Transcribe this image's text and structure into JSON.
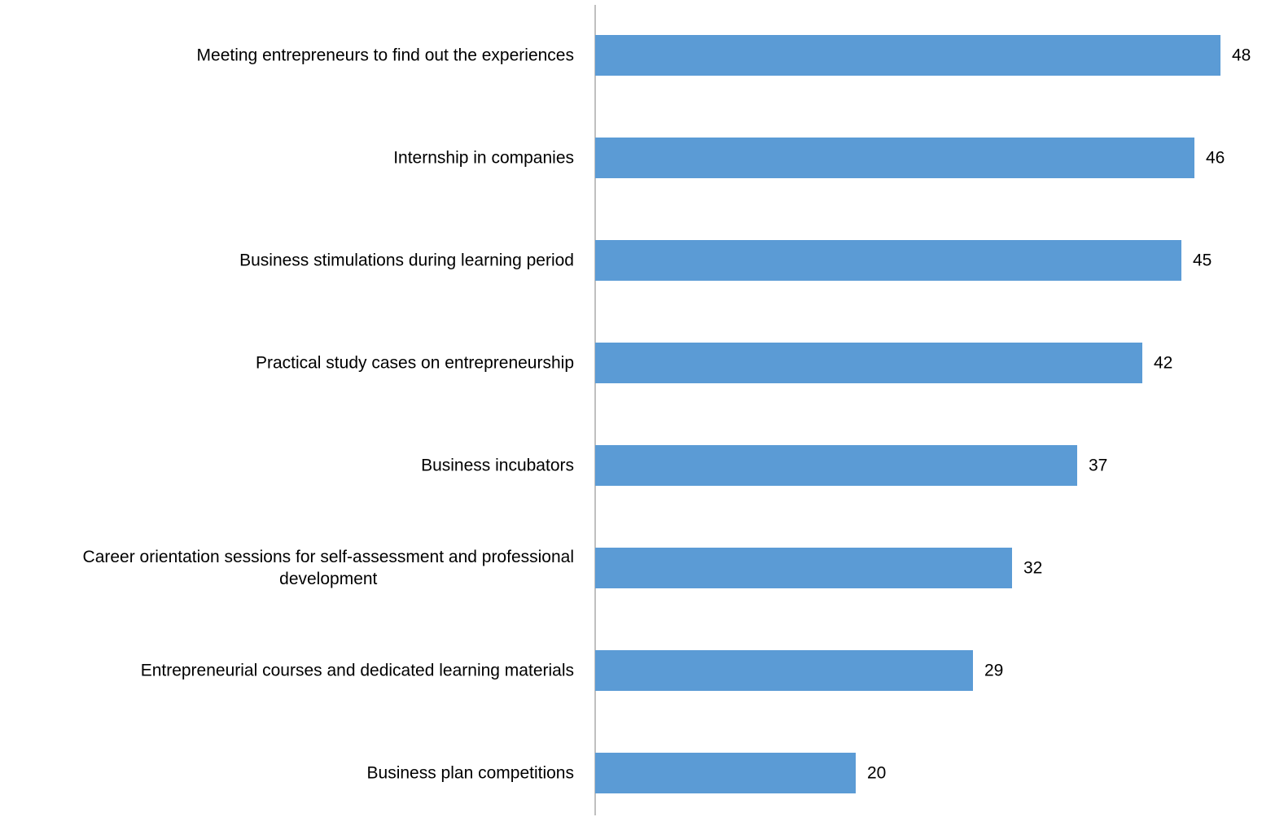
{
  "chart_data": {
    "type": "bar",
    "orientation": "horizontal",
    "categories": [
      "Meeting entrepreneurs to find out the experiences",
      "Internship in companies",
      "Business stimulations during learning period",
      "Practical study cases on entrepreneurship",
      "Business incubators",
      "Career orientation sessions for self-assessment and professional development",
      "Entrepreneurial courses and dedicated learning materials",
      "Business plan competitions"
    ],
    "category_lines": [
      [
        "Meeting entrepreneurs to find out the experiences"
      ],
      [
        "Internship in companies"
      ],
      [
        "Business stimulations during learning period"
      ],
      [
        "Practical study cases on entrepreneurship"
      ],
      [
        "Business incubators"
      ],
      [
        "Career orientation sessions for self-assessment and professional",
        "development"
      ],
      [
        "Entrepreneurial courses and dedicated learning materials"
      ],
      [
        "Business plan competitions"
      ]
    ],
    "values": [
      48,
      46,
      45,
      42,
      37,
      32,
      29,
      20
    ],
    "data_labels": true,
    "xlim": [
      0,
      50
    ],
    "grid": false,
    "legend": "none",
    "title": "",
    "xlabel": "",
    "ylabel": "",
    "bar_color": "#5b9bd5",
    "axis_color": "#808080"
  }
}
